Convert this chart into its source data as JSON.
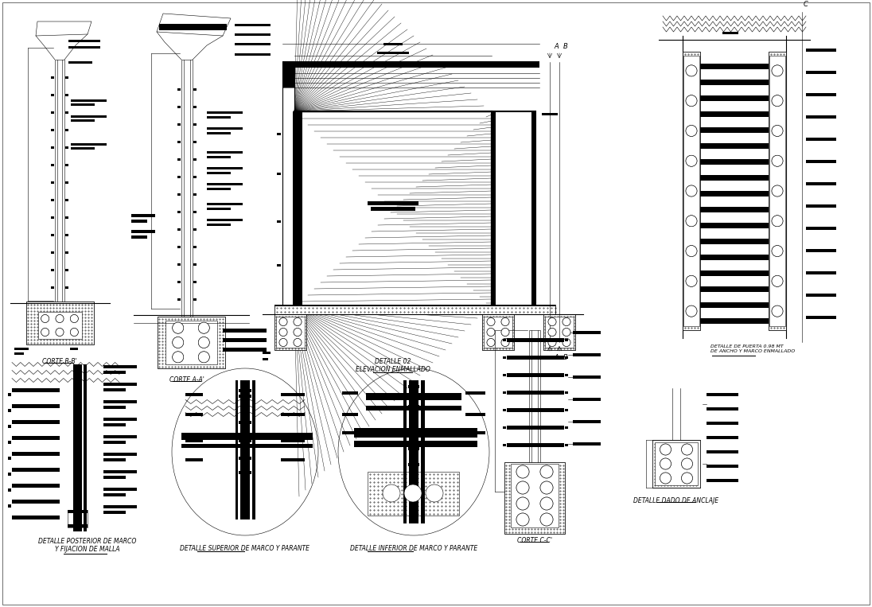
{
  "bg_color": "#ffffff",
  "line_color": "#000000",
  "labels": {
    "corte_bb": "CORTE B-B'",
    "corte_aa": "CORTE A-A'",
    "detalle02_line1": "DETALLE 02",
    "detalle02_line2": "ELEVACION ENMALLADO",
    "detalle_puerta": "DETALLE DE PUERTA 0.98 MT\nDE ANCHO Y MARCO ENMALLADO",
    "detalle_posterior_line1": "DETALLE POSTERIOR DE MARCO",
    "detalle_posterior_line2": "Y FIJACION DE MALLA",
    "detalle_superior": "DETALLE SUPERIOR DE MARCO Y PARANTE",
    "detalle_inferior": "DETALLE INFERIOR DE MARCO Y PARANTE",
    "corte_cc": "CORTE C-C'",
    "detalle_dado": "DETALLE DADO DE ANCLAJE"
  },
  "fs": 5.5,
  "fa": 4.5
}
